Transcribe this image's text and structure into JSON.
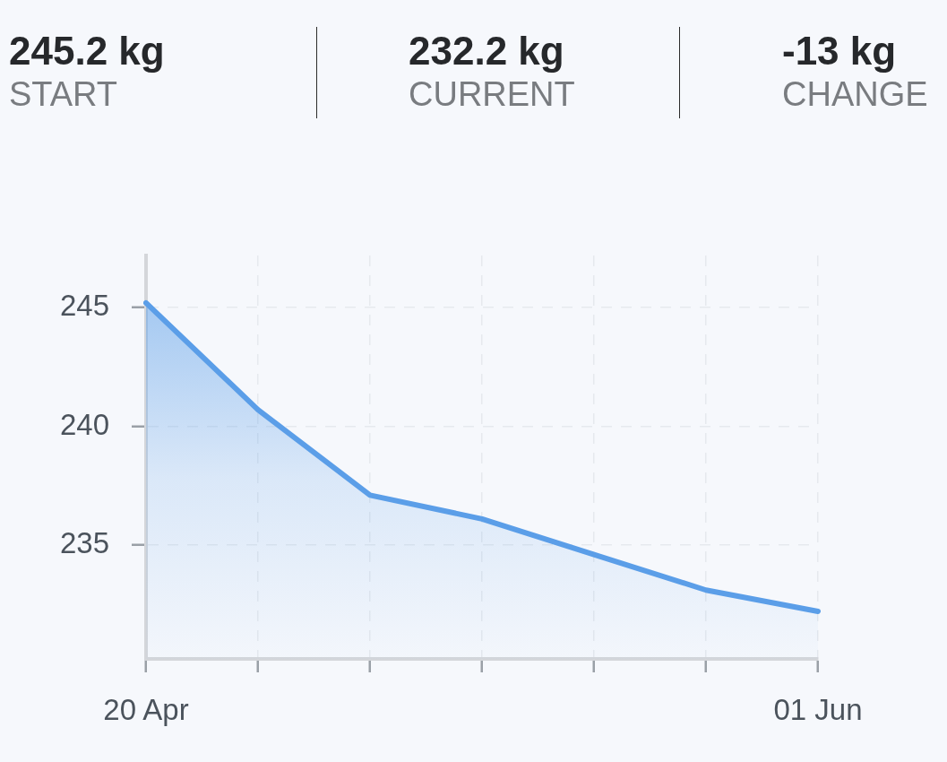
{
  "chart_data": {
    "type": "area",
    "categories": [
      "20 Apr",
      null,
      null,
      null,
      null,
      null,
      "01 Jun"
    ],
    "values": [
      245.2,
      240.7,
      237.1,
      236.1,
      234.6,
      233.1,
      232.2
    ],
    "color": "#5b9ee8",
    "ylim": [
      230.2,
      247.2
    ],
    "yticks": [
      235,
      240,
      245
    ],
    "grid": true,
    "annotations": [
      "245.2 kg",
      "START",
      "232.2 kg",
      "CURRENT",
      "-13 kg",
      "CHANGE"
    ]
  }
}
